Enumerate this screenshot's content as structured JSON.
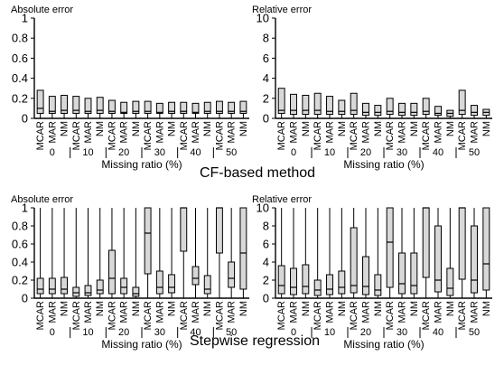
{
  "chart_data": [
    {
      "type": "box",
      "panel": "top-left",
      "ylabel": "Absolute error",
      "xlabel": "Missing ratio (%)",
      "ylim": [
        0,
        1
      ],
      "yticks": [
        0,
        0.2,
        0.4,
        0.6,
        0.8,
        1
      ],
      "ratios": [
        "0",
        "10",
        "20",
        "30",
        "40",
        "50"
      ],
      "mechanisms": [
        "MCAR",
        "MAR",
        "NM"
      ],
      "boxes": [
        [
          0,
          0.05,
          0.1,
          0.28,
          0.28
        ],
        [
          0,
          0.05,
          0.07,
          0.22,
          0.22
        ],
        [
          0,
          0.05,
          0.08,
          0.23,
          0.23
        ],
        [
          0,
          0.05,
          0.08,
          0.22,
          0.22
        ],
        [
          0,
          0.05,
          0.07,
          0.2,
          0.2
        ],
        [
          0,
          0.05,
          0.08,
          0.21,
          0.21
        ],
        [
          0,
          0.05,
          0.07,
          0.18,
          0.18
        ],
        [
          0,
          0.05,
          0.06,
          0.16,
          0.16
        ],
        [
          0,
          0.05,
          0.07,
          0.17,
          0.17
        ],
        [
          0,
          0.05,
          0.07,
          0.17,
          0.17
        ],
        [
          0,
          0.05,
          0.06,
          0.15,
          0.15
        ],
        [
          0,
          0.05,
          0.07,
          0.16,
          0.16
        ],
        [
          0,
          0.05,
          0.07,
          0.16,
          0.16
        ],
        [
          0,
          0.05,
          0.06,
          0.15,
          0.15
        ],
        [
          0,
          0.05,
          0.07,
          0.16,
          0.16
        ],
        [
          0,
          0.05,
          0.07,
          0.17,
          0.17
        ],
        [
          0,
          0.05,
          0.07,
          0.16,
          0.16
        ],
        [
          0,
          0.05,
          0.07,
          0.17,
          0.17
        ]
      ]
    },
    {
      "type": "box",
      "panel": "top-right",
      "ylabel": "Relative error",
      "xlabel": "Missing ratio (%)",
      "ylim": [
        0,
        10
      ],
      "yticks": [
        0,
        2,
        4,
        6,
        8,
        10
      ],
      "ratios": [
        "0",
        "10",
        "20",
        "30",
        "40",
        "50"
      ],
      "mechanisms": [
        "MCAR",
        "MAR",
        "NM"
      ],
      "boxes": [
        [
          0,
          0.5,
          0.8,
          3.0,
          3.0
        ],
        [
          0,
          0.4,
          0.8,
          2.4,
          2.4
        ],
        [
          0,
          0.4,
          0.8,
          2.3,
          2.3
        ],
        [
          0,
          0.4,
          0.8,
          2.5,
          2.5
        ],
        [
          0,
          0.4,
          0.7,
          2.2,
          2.2
        ],
        [
          0,
          0.4,
          0.7,
          1.8,
          1.8
        ],
        [
          0,
          0.4,
          0.8,
          2.5,
          2.5
        ],
        [
          0,
          0.3,
          0.6,
          1.5,
          1.5
        ],
        [
          0,
          0.3,
          0.6,
          1.3,
          1.3
        ],
        [
          0,
          0.4,
          0.7,
          2.0,
          2.0
        ],
        [
          0,
          0.3,
          0.6,
          1.5,
          1.5
        ],
        [
          0,
          0.3,
          0.6,
          1.5,
          1.5
        ],
        [
          0,
          0.4,
          0.7,
          2.0,
          2.0
        ],
        [
          0,
          0.3,
          0.5,
          1.2,
          1.2
        ],
        [
          0,
          0.2,
          0.5,
          0.8,
          0.8
        ],
        [
          0,
          0.4,
          0.8,
          2.8,
          2.8
        ],
        [
          0,
          0.3,
          0.6,
          1.3,
          1.3
        ],
        [
          0,
          0.3,
          0.6,
          0.9,
          0.9
        ]
      ]
    },
    {
      "type": "box",
      "panel": "bottom-left",
      "ylabel": "Absolute error",
      "xlabel": "Missing ratio (%)",
      "ylim": [
        0,
        1
      ],
      "yticks": [
        0,
        0.2,
        0.4,
        0.6,
        0.8,
        1
      ],
      "ratios": [
        "0",
        "10",
        "20",
        "30",
        "40",
        "50"
      ],
      "mechanisms": [
        "MCAR",
        "MAR",
        "NM"
      ],
      "boxes": [
        [
          0,
          0.05,
          0.1,
          0.22,
          1.0
        ],
        [
          0,
          0.05,
          0.1,
          0.22,
          1.0
        ],
        [
          0,
          0.05,
          0.1,
          0.23,
          1.0
        ],
        [
          0,
          0.02,
          0.06,
          0.12,
          1.0
        ],
        [
          0,
          0.03,
          0.06,
          0.14,
          1.0
        ],
        [
          0,
          0.05,
          0.09,
          0.2,
          1.0
        ],
        [
          0,
          0.05,
          0.22,
          0.53,
          1.0
        ],
        [
          0,
          0.05,
          0.12,
          0.22,
          1.0
        ],
        [
          0,
          0.02,
          0.05,
          0.12,
          1.0
        ],
        [
          0,
          0.27,
          0.72,
          1.0,
          1.0
        ],
        [
          0,
          0.05,
          0.12,
          0.3,
          1.0
        ],
        [
          0,
          0.06,
          0.12,
          0.26,
          1.0
        ],
        [
          0,
          0.52,
          1.0,
          1.0,
          1.0
        ],
        [
          0,
          0.15,
          0.22,
          0.35,
          1.0
        ],
        [
          0,
          0.05,
          0.1,
          0.25,
          1.0
        ],
        [
          0,
          0.5,
          1.0,
          1.0,
          1.0
        ],
        [
          0,
          0.12,
          0.22,
          0.4,
          1.0
        ],
        [
          0,
          0.1,
          0.5,
          1.0,
          1.0
        ]
      ]
    },
    {
      "type": "box",
      "panel": "bottom-right",
      "ylabel": "Relative error",
      "xlabel": "Missing ratio (%)",
      "ylim": [
        0,
        10
      ],
      "yticks": [
        0,
        2,
        4,
        6,
        8,
        10
      ],
      "ratios": [
        "0",
        "10",
        "20",
        "30",
        "40",
        "50"
      ],
      "mechanisms": [
        "MCAR",
        "MAR",
        "NM"
      ],
      "boxes": [
        [
          0,
          0.5,
          1.4,
          3.6,
          10
        ],
        [
          0,
          0.4,
          1.2,
          3.3,
          10
        ],
        [
          0,
          0.5,
          1.3,
          3.7,
          10
        ],
        [
          0,
          0.3,
          0.9,
          2.0,
          10
        ],
        [
          0,
          0.4,
          1.0,
          2.6,
          10
        ],
        [
          0,
          0.5,
          1.2,
          3.0,
          10
        ],
        [
          0,
          0.6,
          1.4,
          7.8,
          10
        ],
        [
          0,
          0.4,
          1.3,
          4.6,
          10
        ],
        [
          0,
          0.3,
          0.9,
          2.6,
          10
        ],
        [
          0,
          1.2,
          6.2,
          10,
          10
        ],
        [
          0,
          0.5,
          1.6,
          5.0,
          10
        ],
        [
          0,
          0.5,
          1.4,
          5.0,
          10
        ],
        [
          0,
          2.3,
          10,
          10,
          10
        ],
        [
          0,
          0.7,
          2.0,
          8.0,
          10
        ],
        [
          0,
          0.3,
          1.1,
          3.3,
          10
        ],
        [
          0,
          2.1,
          10,
          10,
          10
        ],
        [
          0,
          0.6,
          2.0,
          8.0,
          10
        ],
        [
          0,
          0.9,
          3.8,
          10,
          10
        ]
      ]
    }
  ],
  "titles": {
    "top": "CF-based method",
    "bottom": "Stepwise regression"
  },
  "colors": {
    "box_fill": "#d8d8d8",
    "stroke": "#000000",
    "background": "#ffffff"
  }
}
